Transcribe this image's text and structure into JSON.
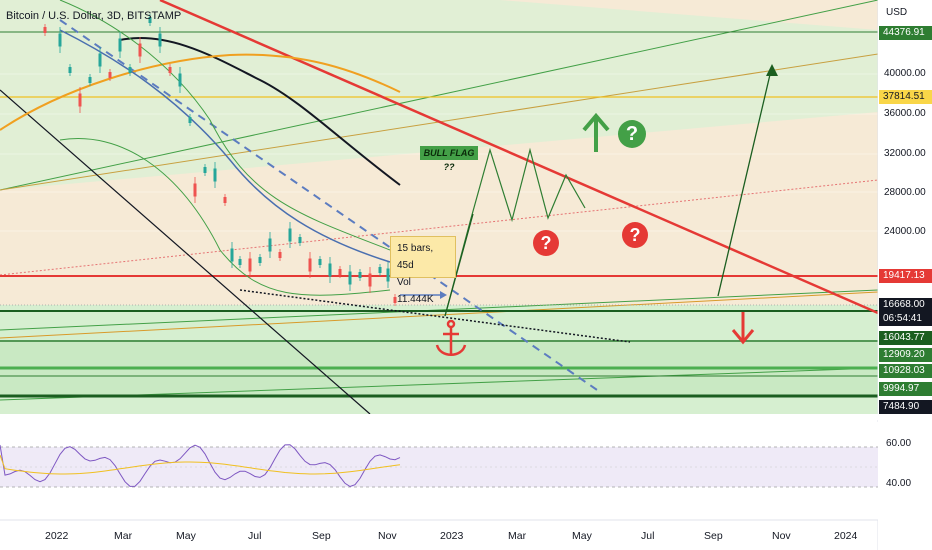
{
  "symbol_title": "Bitcoin / U.S. Dollar, 3D, BITSTAMP",
  "currency_label": "USD",
  "price_axis_ticks": [
    "40000.00",
    "36000.00",
    "32000.00",
    "28000.00",
    "24000.00"
  ],
  "price_badges": [
    {
      "label": "44376.91",
      "color": "#2e7d32"
    },
    {
      "label": "37814.51",
      "color": "#f9d648",
      "text_color": "#131722"
    },
    {
      "label": "19417.13",
      "color": "#e53935"
    },
    {
      "label": "16668.00",
      "color": "#131722"
    },
    {
      "label": "06:54:41",
      "color": "#131722"
    },
    {
      "label": "16043.77",
      "color": "#1b5e20"
    },
    {
      "label": "12909.20",
      "color": "#2e7d32"
    },
    {
      "label": "10928.03",
      "color": "#2e7d32"
    },
    {
      "label": "9994.97",
      "color": "#2e7d32"
    },
    {
      "label": "7484.90",
      "color": "#131722"
    }
  ],
  "time_axis_labels": [
    "2022",
    "Mar",
    "May",
    "Jul",
    "Sep",
    "Nov",
    "2023",
    "Mar",
    "May",
    "Jul",
    "Sep",
    "Nov",
    "2024"
  ],
  "rsi_ticks": [
    "60.00",
    "40.00"
  ],
  "tooltip": {
    "line1": "15 bars, 45d",
    "line2": "Vol 11.444K"
  },
  "annotation_bull_flag": "BULL FLAG ??",
  "question_marks": [
    "?",
    "?",
    "?",
    "?"
  ],
  "colors": {
    "resistance": "#e53935",
    "support": "#1b5e20",
    "bg_upper": "#f6ead6",
    "bg_lower": "#d4efd0",
    "rsi_bg": "#efeaf7"
  }
}
